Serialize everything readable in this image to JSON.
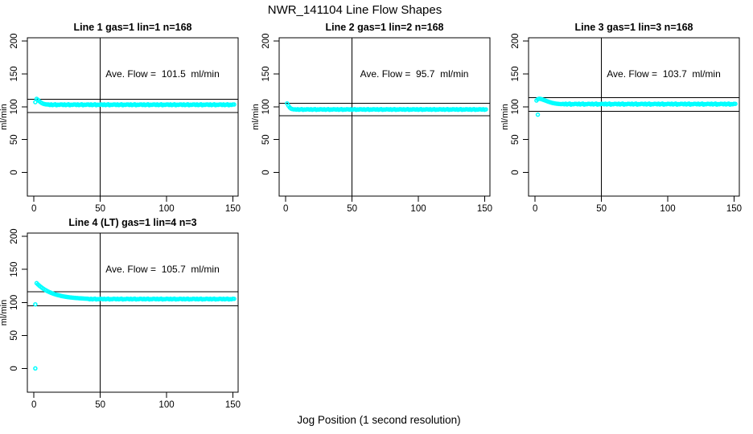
{
  "title": "NWR_141104  Line Flow Shapes",
  "xlabel": "Jog Position (1 second resolution)",
  "point_color": "#00FFFF",
  "line_color": "#000000",
  "chart_data": [
    {
      "type": "scatter",
      "title": "Line 1 gas=1 lin=1 n=168",
      "annotation": "Ave. Flow =  101.5  ml/min",
      "ave_flow": 101.5,
      "ylabel": "ml/min",
      "x_ticks": [
        0,
        50,
        100,
        150
      ],
      "y_ticks": [
        0,
        50,
        100,
        150,
        200
      ],
      "xlim": [
        -5,
        154
      ],
      "ylim": [
        -36,
        205
      ],
      "vline_x": 50,
      "hlines": [
        111.7,
        91.4
      ],
      "x_start": 1,
      "y_values": [
        107,
        112,
        110.6,
        108.6,
        106.9,
        105.5,
        104.6,
        104,
        103.6,
        103.4,
        103.4,
        102.7,
        103.6,
        102.5,
        103.2,
        103.7,
        102.4,
        103.1,
        102.8,
        103.5,
        103.4,
        102.7,
        103.6,
        102.5,
        103.2,
        103.7,
        102.4,
        103.1,
        102.8,
        103.5,
        103.4,
        102.7,
        103.6,
        102.5,
        103.2,
        103.7,
        102.4,
        103.1,
        102.8,
        103.5,
        103.4,
        102.7,
        103.6,
        102.5,
        103.2,
        103.7,
        102.4,
        103.1,
        102.8,
        103.5,
        103.4,
        102.7,
        103.6,
        102.5,
        103.2,
        103.7,
        102.4,
        103.1,
        102.8,
        103.5,
        103.4,
        102.7,
        103.6,
        102.5,
        103.2,
        103.7,
        102.4,
        103.1,
        102.8,
        103.5,
        103.4,
        102.7,
        103.6,
        102.5,
        103.2,
        103.7,
        102.4,
        103.1,
        102.8,
        103.5,
        103.4,
        102.7,
        103.6,
        102.5,
        103.2,
        103.7,
        102.4,
        103.1,
        102.8,
        103.5,
        103.4,
        102.7,
        103.6,
        102.5,
        103.2,
        103.7,
        102.4,
        103.1,
        102.8,
        103.5,
        103.4,
        102.7,
        103.6,
        102.5,
        103.2,
        103.7,
        102.4,
        103.1,
        102.8,
        103.5,
        103.4,
        102.7,
        103.6,
        102.5,
        103.2,
        103.7,
        102.4,
        103.1,
        102.8,
        103.5,
        103.4,
        102.7,
        103.6,
        102.5,
        103.2,
        103.7,
        102.4,
        103.1,
        102.8,
        103.5,
        103.4,
        102.7,
        103.6,
        102.5,
        103.2,
        103.7,
        102.4,
        103.1,
        102.8,
        103.5,
        103.4,
        102.7,
        103.6,
        102.5,
        103.2,
        103.7,
        102.4,
        103.1,
        102.8,
        103.5,
        103.4
      ],
      "extra_points": []
    },
    {
      "type": "scatter",
      "title": "Line 2 gas=1 lin=2 n=168",
      "annotation": "Ave. Flow =  95.7  ml/min",
      "ave_flow": 95.7,
      "ylabel": "ml/min",
      "x_ticks": [
        0,
        50,
        100,
        150
      ],
      "y_ticks": [
        0,
        50,
        100,
        150,
        200
      ],
      "xlim": [
        -5,
        154
      ],
      "ylim": [
        -36,
        205
      ],
      "vline_x": 50,
      "hlines": [
        105.3,
        86.1
      ],
      "x_start": 1,
      "y_values": [
        105,
        101.5,
        98.8,
        97.2,
        96.4,
        96,
        96.1,
        95.6,
        96.3,
        95.4,
        96,
        96.4,
        95.3,
        95.9,
        95.6,
        96.2,
        96.1,
        95.6,
        96.3,
        95.4,
        96,
        96.4,
        95.3,
        95.9,
        95.6,
        96.2,
        96.1,
        95.6,
        96.3,
        95.4,
        96,
        96.4,
        95.3,
        95.9,
        95.6,
        96.2,
        96.1,
        95.6,
        96.3,
        95.4,
        96,
        96.4,
        95.3,
        95.9,
        95.6,
        96.2,
        96.1,
        95.6,
        96.3,
        95.4,
        96,
        96.4,
        95.3,
        95.9,
        95.6,
        96.2,
        96.1,
        95.6,
        96.3,
        95.4,
        96,
        96.4,
        95.3,
        95.9,
        95.6,
        96.2,
        96.1,
        95.6,
        96.3,
        95.4,
        96,
        96.4,
        95.3,
        95.9,
        95.6,
        96.2,
        96.1,
        95.6,
        96.3,
        95.4,
        96,
        96.4,
        95.3,
        95.9,
        95.6,
        96.2,
        96.1,
        95.6,
        96.3,
        95.4,
        96,
        96.4,
        95.3,
        95.9,
        95.6,
        96.2,
        96.1,
        95.6,
        96.3,
        95.4,
        96,
        96.4,
        95.3,
        95.9,
        95.6,
        96.2,
        96.1,
        95.6,
        96.3,
        95.4,
        96,
        96.4,
        95.3,
        95.9,
        95.6,
        96.2,
        96.1,
        95.6,
        96.3,
        95.4,
        96,
        96.4,
        95.3,
        95.9,
        95.6,
        96.2,
        96.1,
        95.6,
        96.3,
        95.4,
        96,
        96.4,
        95.3,
        95.9,
        95.6,
        96.2,
        96.1,
        95.6,
        96.3,
        95.4,
        96,
        96.4,
        95.3,
        95.9,
        95.6,
        96.2,
        96.1,
        95.6,
        96.3,
        95.4,
        96
      ],
      "extra_points": []
    },
    {
      "type": "scatter",
      "title": "Line 3 gas=1 lin=3 n=168",
      "annotation": "Ave. Flow =  103.7  ml/min",
      "ave_flow": 103.7,
      "ylabel": "ml/min",
      "x_ticks": [
        0,
        50,
        100,
        150
      ],
      "y_ticks": [
        0,
        50,
        100,
        150,
        200
      ],
      "xlim": [
        -5,
        154
      ],
      "ylim": [
        -36,
        205
      ],
      "vline_x": 50,
      "hlines": [
        114.1,
        93.3
      ],
      "x_start": 1,
      "y_values": [
        109.5,
        111.5,
        112.2,
        112,
        111.4,
        110.7,
        110,
        109.2,
        108.4,
        107.7,
        107,
        106.4,
        105.8,
        105.4,
        105,
        104.7,
        104.5,
        104.3,
        104.1,
        104,
        104.4,
        103.7,
        104.7,
        103.5,
        104.2,
        104.8,
        103.3,
        104.1,
        103.8,
        104.6,
        104.4,
        103.7,
        104.7,
        103.5,
        104.2,
        104.8,
        103.3,
        104.1,
        103.8,
        104.6,
        104.4,
        103.7,
        104.7,
        103.5,
        104.2,
        104.8,
        103.3,
        104.1,
        103.8,
        104.6,
        104.4,
        103.7,
        104.7,
        103.5,
        104.2,
        104.8,
        103.3,
        104.1,
        103.8,
        104.6,
        104.4,
        103.7,
        104.7,
        103.5,
        104.2,
        104.8,
        103.3,
        104.1,
        103.8,
        104.6,
        104.4,
        103.7,
        104.7,
        103.5,
        104.2,
        104.8,
        103.3,
        104.1,
        103.8,
        104.6,
        104.4,
        103.7,
        104.7,
        103.5,
        104.2,
        104.8,
        103.3,
        104.1,
        103.8,
        104.6,
        104.4,
        103.7,
        104.7,
        103.5,
        104.2,
        104.8,
        103.3,
        104.1,
        103.8,
        104.6,
        104.4,
        103.7,
        104.7,
        103.5,
        104.2,
        104.8,
        103.3,
        104.1,
        103.8,
        104.6,
        104.4,
        103.7,
        104.7,
        103.5,
        104.2,
        104.8,
        103.3,
        104.1,
        103.8,
        104.6,
        104.4,
        103.7,
        104.7,
        103.5,
        104.2,
        104.8,
        103.3,
        104.1,
        103.8,
        104.6,
        104.4,
        103.7,
        104.7,
        103.5,
        104.2,
        104.8,
        103.3,
        104.1,
        103.8,
        104.6,
        104.4,
        103.7,
        104.7,
        103.5,
        104.2,
        104.8,
        103.3,
        104.1,
        103.8,
        104.6,
        104.4
      ],
      "extra_points": [
        [
          2,
          88
        ]
      ]
    },
    {
      "type": "scatter",
      "title": "Line 4 (LT) gas=1 lin=4 n=3",
      "annotation": "Ave. Flow =  105.7  ml/min",
      "ave_flow": 105.7,
      "ylabel": "ml/min",
      "x_ticks": [
        0,
        50,
        100,
        150
      ],
      "y_ticks": [
        0,
        50,
        100,
        150,
        200
      ],
      "xlim": [
        -5,
        154
      ],
      "ylim": [
        -36,
        205
      ],
      "vline_x": 50,
      "hlines": [
        116.3,
        95.1
      ],
      "x_start": 2,
      "y_values": [
        129.2,
        127.2,
        125.4,
        123.8,
        122.2,
        120.8,
        119.5,
        118.3,
        117.2,
        116.2,
        115.3,
        114.4,
        113.6,
        112.9,
        112.2,
        111.6,
        111.1,
        110.6,
        110.1,
        109.6,
        109.2,
        108.9,
        108.5,
        108.2,
        107.9,
        107.7,
        107.4,
        107.2,
        107,
        106.8,
        106.6,
        106.5,
        106.3,
        106.2,
        106.1,
        105.9,
        105.8,
        105.7,
        105.6,
        105.4,
        104.7,
        105.5,
        104.6,
        105.2,
        105.6,
        104.5,
        105.1,
        104.8,
        105.5,
        105.4,
        104.7,
        105.5,
        104.6,
        105.2,
        105.6,
        104.5,
        105.1,
        104.8,
        105.5,
        105.4,
        104.7,
        105.5,
        104.6,
        105.2,
        105.6,
        104.5,
        105.1,
        104.8,
        105.5,
        105.4,
        104.7,
        105.5,
        104.6,
        105.2,
        105.6,
        104.5,
        105.1,
        104.8,
        105.5,
        105.4,
        104.7,
        105.5,
        104.6,
        105.2,
        105.6,
        104.5,
        105.1,
        104.8,
        105.5,
        105.4,
        104.7,
        105.5,
        104.6,
        105.2,
        105.6,
        104.5,
        105.1,
        104.8,
        105.5,
        105.4,
        104.7,
        105.5,
        104.6,
        105.2,
        105.6,
        104.5,
        105.1,
        104.8,
        105.5,
        105.4,
        104.7,
        105.5,
        104.6,
        105.2,
        105.6,
        104.5,
        105.1,
        104.8,
        105.5,
        105.4,
        104.7,
        105.5,
        104.6,
        105.2,
        105.6,
        104.5,
        105.1,
        104.8,
        105.5,
        105.4,
        104.7,
        105.5,
        104.6,
        105.2,
        105.6,
        104.5,
        105.1,
        104.8,
        105.5,
        105.4,
        104.7,
        105.5,
        104.6,
        105.2,
        105.6,
        104.5,
        105.1,
        104.8,
        105.5,
        105.4
      ],
      "extra_points": [
        [
          1,
          97
        ],
        [
          1,
          0
        ]
      ]
    }
  ]
}
